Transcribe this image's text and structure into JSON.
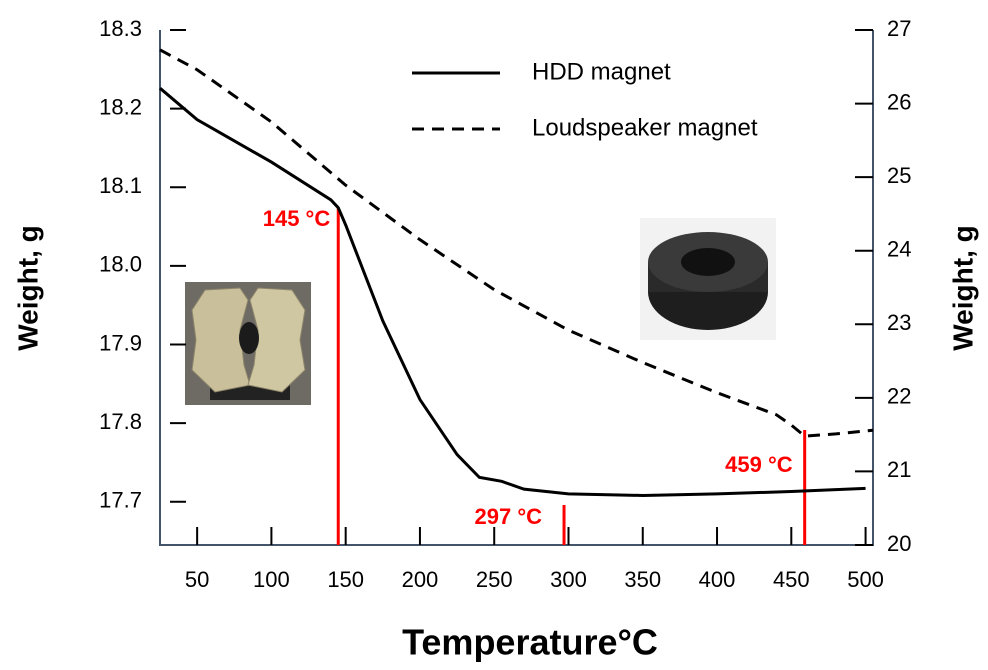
{
  "chart_data": {
    "type": "line",
    "xlabel": "Temperature°C",
    "ylabel": "Weight, g",
    "y2label": "Weight, g",
    "xlim": [
      25,
      505
    ],
    "xticks": [
      50,
      100,
      150,
      200,
      250,
      300,
      350,
      400,
      450,
      500
    ],
    "ylim": [
      17.645,
      18.3
    ],
    "yticks": [
      17.7,
      17.8,
      17.9,
      {
        "value": 18,
        "label": "18.0"
      },
      18.1,
      18.2,
      18.3
    ],
    "y2lim": [
      20,
      27
    ],
    "y2ticks": [
      20,
      21,
      22,
      23,
      24,
      25,
      26,
      27
    ],
    "legend": "top",
    "series": [
      {
        "name": "HDD magnet",
        "color": "#000000",
        "dash": "solid",
        "axis": "y",
        "x": [
          25,
          50,
          100,
          140,
          145,
          150,
          175,
          200,
          225,
          240,
          255,
          270,
          300,
          350,
          400,
          450,
          500
        ],
        "values": [
          18.226,
          18.186,
          18.132,
          18.084,
          18.074,
          18.052,
          17.93,
          17.83,
          17.76,
          17.731,
          17.726,
          17.716,
          17.71,
          17.708,
          17.71,
          17.713,
          17.717
        ]
      },
      {
        "name": "Loudspeaker magnet",
        "color": "#000000",
        "dash": "dashed",
        "axis": "y2",
        "x": [
          25,
          50,
          100,
          150,
          200,
          250,
          300,
          350,
          400,
          440,
          450,
          459,
          480,
          505
        ],
        "values": [
          26.73,
          26.46,
          25.75,
          24.89,
          24.15,
          23.47,
          22.92,
          22.48,
          22.07,
          21.77,
          21.63,
          21.48,
          21.51,
          21.56
        ]
      }
    ],
    "annotations": [
      {
        "text": "145 °C",
        "x": 145,
        "color": "#ff0000"
      },
      {
        "text": "297 °C",
        "x": 297,
        "color": "#ff0000"
      },
      {
        "text": "459 °C",
        "x": 459,
        "color": "#ff0000"
      }
    ]
  }
}
